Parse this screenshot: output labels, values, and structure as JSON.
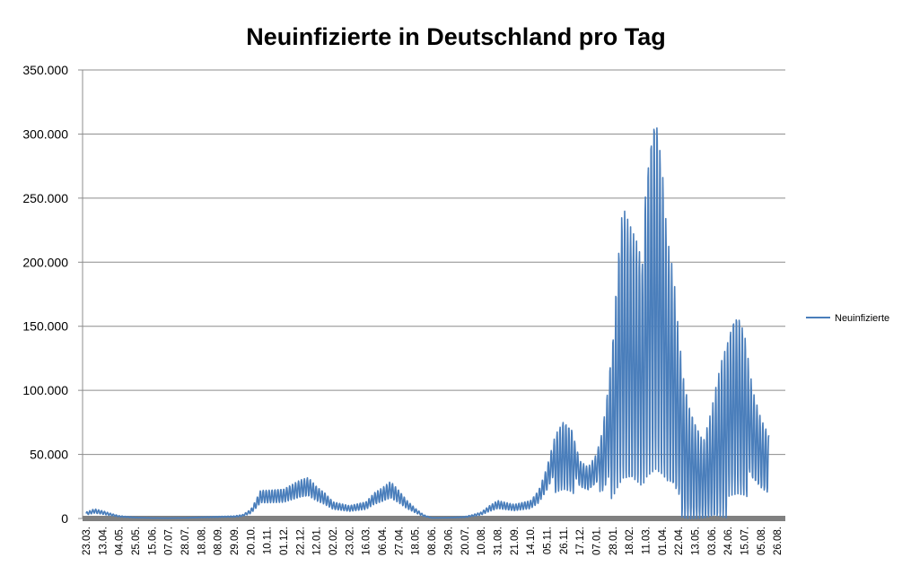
{
  "chart_data": {
    "type": "line",
    "title": "Neuinfizierte in Deutschland pro Tag",
    "xlabel": "",
    "ylabel": "",
    "ylim": [
      0,
      350000
    ],
    "yticks": [
      "0",
      "50.000",
      "100.000",
      "150.000",
      "200.000",
      "250.000",
      "300.000",
      "350.000"
    ],
    "xticks": [
      "23.03.",
      "13.04.",
      "04.05.",
      "25.05.",
      "15.06.",
      "07.07.",
      "28.07.",
      "18.08.",
      "08.09.",
      "29.09.",
      "20.10.",
      "10.11.",
      "01.12.",
      "22.12.",
      "12.01.",
      "02.02.",
      "23.02.",
      "16.03.",
      "06.04.",
      "27.04.",
      "18.05.",
      "08.06.",
      "29.06.",
      "20.07.",
      "10.08.",
      "31.08.",
      "21.09.",
      "14.10.",
      "05.11.",
      "26.11.",
      "17.12.",
      "07.01.",
      "28.01.",
      "18.02.",
      "11.03.",
      "01.04.",
      "22.04.",
      "13.05.",
      "03.06.",
      "24.06.",
      "15.07.",
      "05.08.",
      "26.08."
    ],
    "grid": true,
    "legend_position": "right",
    "series": [
      {
        "name": "Neuinfizierte",
        "color": "#4a7ebb",
        "peaks": [
          [
            0,
            5000
          ],
          [
            0.5,
            7500
          ],
          [
            1,
            6000
          ],
          [
            1.5,
            4000
          ],
          [
            2,
            2200
          ],
          [
            2.5,
            1500
          ],
          [
            3,
            1000
          ],
          [
            4,
            500
          ],
          [
            5,
            400
          ],
          [
            6,
            600
          ],
          [
            7,
            1200
          ],
          [
            8,
            1600
          ],
          [
            9,
            2000
          ],
          [
            9.5,
            3000
          ],
          [
            10,
            7000
          ],
          [
            10.3,
            14000
          ],
          [
            10.6,
            22000
          ],
          [
            11,
            22000
          ],
          [
            12,
            23000
          ],
          [
            13,
            30000
          ],
          [
            13.5,
            32000
          ],
          [
            14,
            25000
          ],
          [
            14.5,
            20000
          ],
          [
            15,
            13000
          ],
          [
            16,
            10000
          ],
          [
            17,
            13000
          ],
          [
            17.5,
            20000
          ],
          [
            18,
            24000
          ],
          [
            18.5,
            29000
          ],
          [
            19,
            22000
          ],
          [
            19.5,
            14000
          ],
          [
            20,
            8000
          ],
          [
            20.5,
            3000
          ],
          [
            21,
            600
          ],
          [
            22,
            800
          ],
          [
            23,
            1500
          ],
          [
            23.5,
            3000
          ],
          [
            24,
            5000
          ],
          [
            24.5,
            10000
          ],
          [
            25,
            14000
          ],
          [
            26,
            11000
          ],
          [
            27,
            14000
          ],
          [
            27.5,
            22000
          ],
          [
            28,
            40000
          ],
          [
            28.5,
            65000
          ],
          [
            29,
            76000
          ],
          [
            29.5,
            70000
          ],
          [
            30,
            45000
          ],
          [
            30.5,
            40000
          ],
          [
            31,
            50000
          ],
          [
            31.3,
            65000
          ],
          [
            31.6,
            90000
          ],
          [
            32,
            140000
          ],
          [
            32.3,
            200000
          ],
          [
            32.6,
            245000
          ],
          [
            33,
            230000
          ],
          [
            33.5,
            215000
          ],
          [
            33.8,
            200000
          ],
          [
            34,
            260000
          ],
          [
            34.3,
            295000
          ],
          [
            34.6,
            318000
          ],
          [
            35,
            275000
          ],
          [
            35.3,
            220000
          ],
          [
            35.7,
            190000
          ],
          [
            36,
            145000
          ],
          [
            36.3,
            110000
          ],
          [
            36.6,
            90000
          ],
          [
            37,
            75000
          ],
          [
            37.5,
            60000
          ],
          [
            38,
            85000
          ],
          [
            38.3,
            105000
          ],
          [
            38.6,
            123000
          ],
          [
            39,
            140000
          ],
          [
            39.3,
            155000
          ],
          [
            39.6,
            160000
          ],
          [
            40,
            145000
          ],
          [
            40.5,
            100000
          ],
          [
            41,
            78000
          ],
          [
            41.5,
            65000
          ]
        ]
      }
    ]
  }
}
